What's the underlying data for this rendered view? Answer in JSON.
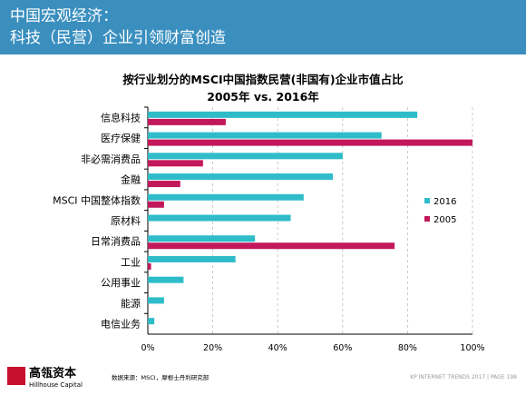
{
  "header": {
    "line1": "中国宏观经济：",
    "line2": "科技（民营）企业引领财富创造"
  },
  "chart_data": {
    "type": "bar",
    "orientation": "horizontal",
    "title": "按行业划分的MSCI中国指数民营(非国有)企业市值占比",
    "subtitle": "2005年  vs.  2016年",
    "categories": [
      "信息科技",
      "医疗保健",
      "非必需消费品",
      "金融",
      "MSCI 中国整体指数",
      "原材料",
      "日常消费品",
      "工业",
      "公用事业",
      "能源",
      "电信业务"
    ],
    "series": [
      {
        "name": "2016",
        "color": "#2fbcc9",
        "values": [
          83,
          72,
          60,
          57,
          48,
          44,
          33,
          27,
          11,
          5,
          2
        ]
      },
      {
        "name": "2005",
        "color": "#c2185b",
        "values": [
          24,
          100,
          17,
          10,
          5,
          null,
          76,
          1,
          null,
          null,
          null
        ]
      }
    ],
    "xlim": [
      0,
      100
    ],
    "xticks": [
      "0%",
      "20%",
      "40%",
      "60%",
      "80%",
      "100%"
    ],
    "grid": "vertical dashed",
    "legend_position": "right"
  },
  "footer": {
    "logo_main": "高瓴资本",
    "logo_sub": "Hillhouse Capital",
    "source": "数据来源：MSCI，摩根士丹利研究部",
    "page": "KP INTERNET TRENDS 2017  |  PAGE 198"
  }
}
